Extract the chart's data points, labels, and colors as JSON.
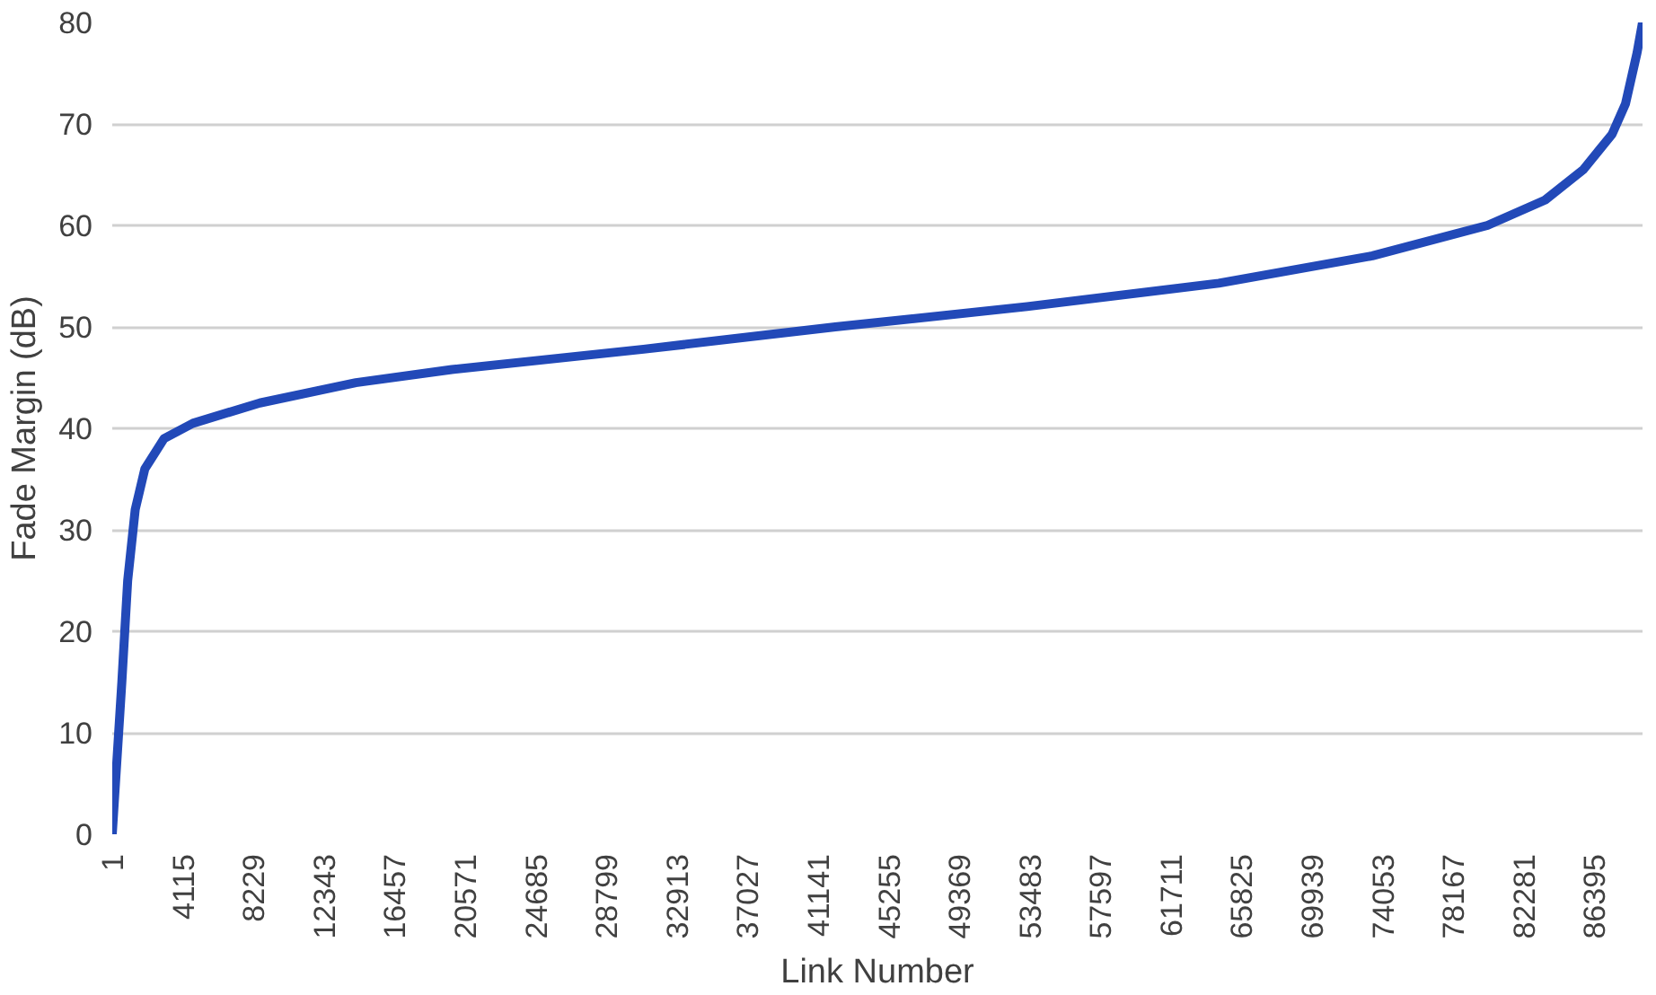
{
  "chart_data": {
    "type": "line",
    "xlabel": "Link Number",
    "ylabel": "Fade Margin (dB)",
    "x": [
      1,
      560,
      900,
      1340,
      1900,
      3020,
      4700,
      8600,
      14200,
      19790,
      30970,
      42150,
      53330,
      64500,
      73450,
      80160,
      83520,
      85750,
      87430,
      88210,
      88880,
      89200
    ],
    "series": [
      {
        "color": "#2249b8",
        "values": [
          0,
          15,
          25,
          32,
          36,
          39,
          40.5,
          42.5,
          44.5,
          45.8,
          47.8,
          50,
          52,
          54.3,
          57,
          60,
          62.5,
          65.5,
          69,
          72,
          77,
          80
        ]
      }
    ],
    "xlim": [
      1,
      89200
    ],
    "ylim": [
      0,
      80
    ],
    "xticks": [
      1,
      4115,
      8229,
      12343,
      16457,
      20571,
      24685,
      28799,
      32913,
      37027,
      41141,
      45255,
      49369,
      53483,
      57597,
      61711,
      65825,
      69939,
      74053,
      78167,
      82281,
      86395
    ],
    "yticks": [
      0,
      10,
      20,
      30,
      40,
      50,
      60,
      70,
      80
    ],
    "grid": "y",
    "marker": "none",
    "line_style": "solid"
  }
}
